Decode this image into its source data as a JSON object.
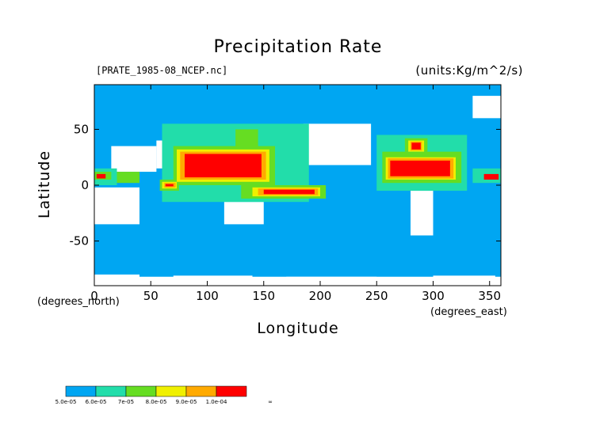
{
  "chart_data": {
    "type": "heatmap",
    "title": "Precipitation Rate",
    "subtitle": "[PRATE_1985-08_NCEP.nc]",
    "units": "(units:Kg/m^2/s)",
    "xlabel": "Longitude",
    "ylabel": "Latitude",
    "ylabel_note": "(degrees_north)",
    "xlabel_note": "(degrees_east)",
    "xlim": [
      0,
      360
    ],
    "ylim": [
      -90,
      90
    ],
    "xticks": [
      0,
      50,
      100,
      150,
      200,
      250,
      300,
      350
    ],
    "yticks": [
      -50,
      0,
      50
    ],
    "colorbar": {
      "labels": [
        "5.0e-05",
        "6.0e-05",
        "7e-05",
        "8.0e-05",
        "9.0e-05",
        "1.0e-04",
        "∞"
      ],
      "colors": [
        "#00a6f2",
        "#22ddaa",
        "#66dd22",
        "#f0f000",
        "#ffaa00",
        "#ff0000"
      ]
    },
    "colors": {
      "ocean_background": "#00a6f2",
      "masked": "#ffffff",
      "coast": "#000000"
    },
    "regions": [
      {
        "lon0": 185,
        "lon1": 245,
        "lat0": 18,
        "lat1": 55,
        "level": -1
      },
      {
        "lon0": 0,
        "lon1": 40,
        "lat0": -35,
        "lat1": -2,
        "level": -1
      },
      {
        "lon0": 15,
        "lon1": 55,
        "lat0": 12,
        "lat1": 35,
        "level": -1
      },
      {
        "lon0": 55,
        "lon1": 70,
        "lat0": 15,
        "lat1": 40,
        "level": -1
      },
      {
        "lon0": 115,
        "lon1": 150,
        "lat0": -35,
        "lat1": -15,
        "level": -1
      },
      {
        "lon0": 280,
        "lon1": 300,
        "lat0": -45,
        "lat1": -5,
        "level": -1
      },
      {
        "lon0": 255,
        "lon1": 270,
        "lat0": 10,
        "lat1": 20,
        "level": -1
      },
      {
        "lon0": 0,
        "lon1": 360,
        "lat0": -90,
        "lat1": -82,
        "level": -1
      },
      {
        "lon0": 0,
        "lon1": 40,
        "lat0": -86,
        "lat1": -80,
        "level": -1
      },
      {
        "lon0": 70,
        "lon1": 140,
        "lat0": -88,
        "lat1": -81,
        "level": -1
      },
      {
        "lon0": 170,
        "lon1": 250,
        "lat0": -88,
        "lat1": -82,
        "level": -1
      },
      {
        "lon0": 300,
        "lon1": 355,
        "lat0": -88,
        "lat1": -81,
        "level": -1
      },
      {
        "lon0": 335,
        "lon1": 360,
        "lat0": 60,
        "lat1": 80,
        "level": -1
      },
      {
        "lon0": 60,
        "lon1": 190,
        "lat0": -15,
        "lat1": 55,
        "level": 1
      },
      {
        "lon0": 250,
        "lon1": 330,
        "lat0": -5,
        "lat1": 45,
        "level": 1
      },
      {
        "lon0": 0,
        "lon1": 20,
        "lat0": 0,
        "lat1": 15,
        "level": 1
      },
      {
        "lon0": 335,
        "lon1": 360,
        "lat0": 2,
        "lat1": 15,
        "level": 1
      },
      {
        "lon0": 70,
        "lon1": 160,
        "lat0": 0,
        "lat1": 35,
        "level": 2
      },
      {
        "lon0": 125,
        "lon1": 145,
        "lat0": 30,
        "lat1": 50,
        "level": 2
      },
      {
        "lon0": 130,
        "lon1": 205,
        "lat0": -12,
        "lat1": 0,
        "level": 2
      },
      {
        "lon0": 58,
        "lon1": 75,
        "lat0": -5,
        "lat1": 5,
        "level": 2
      },
      {
        "lon0": 255,
        "lon1": 325,
        "lat0": 2,
        "lat1": 30,
        "level": 2
      },
      {
        "lon0": 275,
        "lon1": 295,
        "lat0": 30,
        "lat1": 42,
        "level": 2
      },
      {
        "lon0": 0,
        "lon1": 15,
        "lat0": 5,
        "lat1": 12,
        "level": 2
      },
      {
        "lon0": 20,
        "lon1": 40,
        "lat0": 2,
        "lat1": 12,
        "level": 2
      },
      {
        "lon0": 73,
        "lon1": 155,
        "lat0": 3,
        "lat1": 32,
        "level": 3
      },
      {
        "lon0": 140,
        "lon1": 200,
        "lat0": -10,
        "lat1": -2,
        "level": 3
      },
      {
        "lon0": 60,
        "lon1": 73,
        "lat0": -3,
        "lat1": 3,
        "level": 3
      },
      {
        "lon0": 258,
        "lon1": 320,
        "lat0": 5,
        "lat1": 25,
        "level": 3
      },
      {
        "lon0": 278,
        "lon1": 292,
        "lat0": 30,
        "lat1": 40,
        "level": 3
      },
      {
        "lon0": 76,
        "lon1": 152,
        "lat0": 5,
        "lat1": 30,
        "level": 4
      },
      {
        "lon0": 145,
        "lon1": 198,
        "lat0": -9,
        "lat1": -3,
        "level": 4
      },
      {
        "lon0": 62,
        "lon1": 72,
        "lat0": -2,
        "lat1": 2,
        "level": 4
      },
      {
        "lon0": 260,
        "lon1": 318,
        "lat0": 6,
        "lat1": 24,
        "level": 4
      },
      {
        "lon0": 280,
        "lon1": 290,
        "lat0": 31,
        "lat1": 39,
        "level": 4
      },
      {
        "lon0": 80,
        "lon1": 148,
        "lat0": 7,
        "lat1": 28,
        "level": 5
      },
      {
        "lon0": 150,
        "lon1": 195,
        "lat0": -8,
        "lat1": -4,
        "level": 5
      },
      {
        "lon0": 63,
        "lon1": 70,
        "lat0": -1,
        "lat1": 1,
        "level": 5
      },
      {
        "lon0": 262,
        "lon1": 315,
        "lat0": 8,
        "lat1": 22,
        "level": 5
      },
      {
        "lon0": 281,
        "lon1": 289,
        "lat0": 32,
        "lat1": 38,
        "level": 5
      },
      {
        "lon0": 345,
        "lon1": 358,
        "lat0": 5,
        "lat1": 10,
        "level": 5
      },
      {
        "lon0": 2,
        "lon1": 10,
        "lat0": 6,
        "lat1": 10,
        "level": 5
      }
    ]
  }
}
